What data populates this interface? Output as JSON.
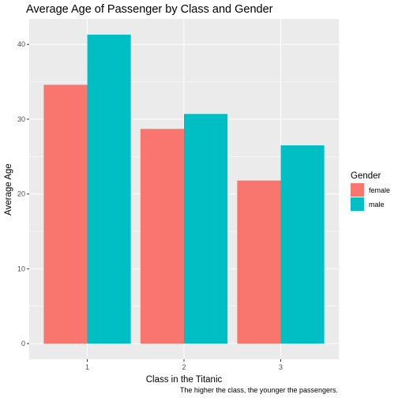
{
  "chart_data": {
    "type": "bar",
    "title": "Average Age of Passenger by Class and Gender",
    "xlabel": "Class in the Titanic",
    "ylabel": "Average Age",
    "caption": "The higher the class, the younger the passengers.",
    "categories": [
      "1",
      "2",
      "3"
    ],
    "series": [
      {
        "name": "female",
        "values": [
          34.6,
          28.7,
          21.8
        ],
        "color": "#F8766D"
      },
      {
        "name": "male",
        "values": [
          41.3,
          30.7,
          26.5
        ],
        "color": "#00BFC4"
      }
    ],
    "ylim": [
      -2.1,
      43.4
    ],
    "yticks": [
      0,
      10,
      20,
      30,
      40
    ],
    "grid": true,
    "legend": {
      "title": "Gender",
      "position": "right"
    },
    "colors": {
      "panel": "#EBEBEB",
      "grid": "#FFFFFF"
    }
  }
}
